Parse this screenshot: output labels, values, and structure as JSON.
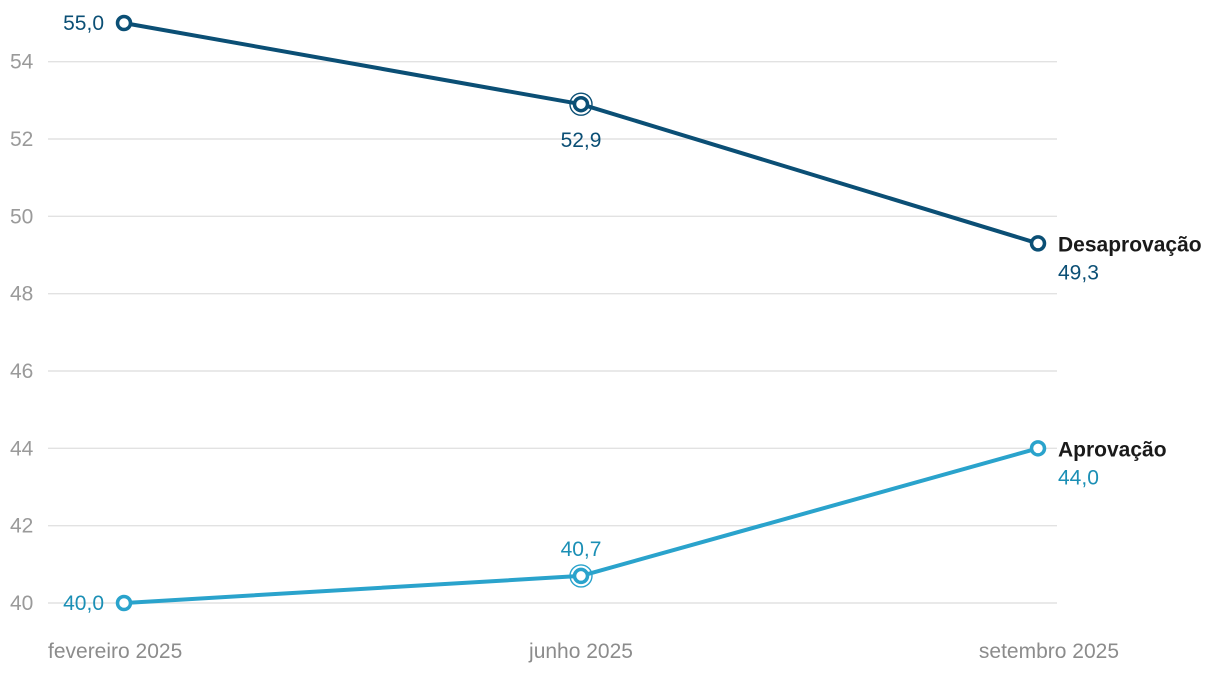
{
  "chart_data": {
    "type": "line",
    "categories": [
      "fevereiro 2025",
      "junho 2025",
      "setembro 2025"
    ],
    "series": [
      {
        "name": "Desaprovação",
        "values": [
          55.0,
          52.9,
          49.3
        ],
        "labels": [
          "55,0",
          "52,9",
          "49,3"
        ],
        "color": "#0b4f75"
      },
      {
        "name": "Aprovação",
        "values": [
          40.0,
          40.7,
          44.0
        ],
        "labels": [
          "40,0",
          "40,7",
          "44,0"
        ],
        "color": "#2aa3cc",
        "label_color": "#1b8fb5"
      }
    ],
    "yticks": [
      "40",
      "42",
      "44",
      "46",
      "48",
      "50",
      "52",
      "54"
    ],
    "ylim": [
      40,
      55
    ],
    "highlighted_category": "junho 2025",
    "grid": true,
    "legend": "direct-labels-right"
  }
}
